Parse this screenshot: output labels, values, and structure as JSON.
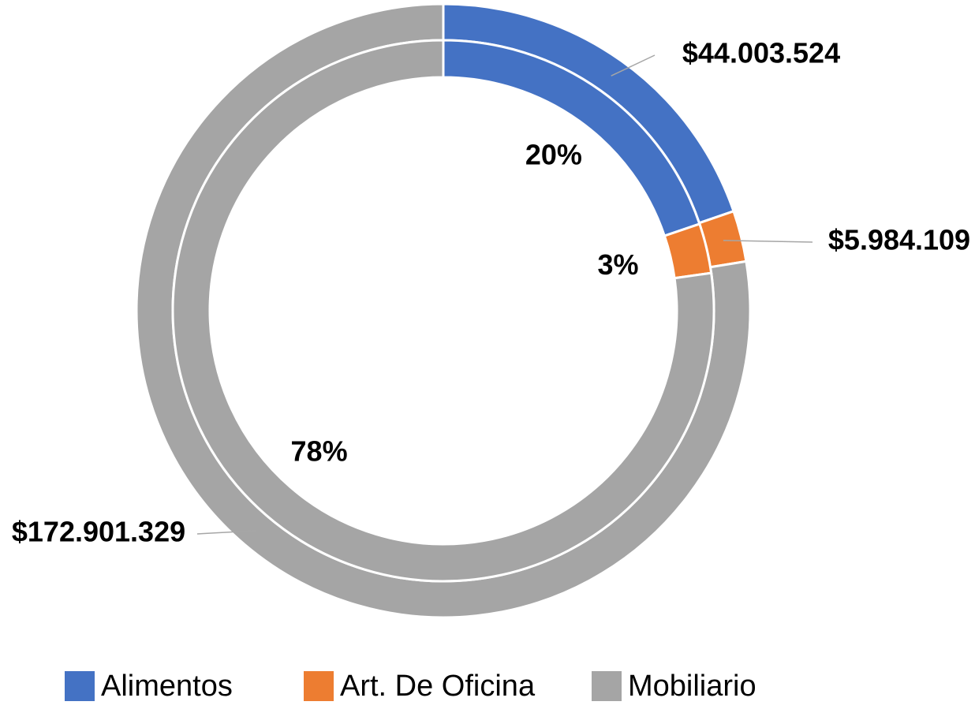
{
  "chart_data": {
    "type": "doughnut",
    "categories": [
      "Alimentos",
      "Art. De Oficina",
      "Mobiliario"
    ],
    "series": [
      {
        "colors": [
          "#4472c4",
          "#ed7d31",
          "#a5a5a5"
        ],
        "values": [
          44003524,
          5984109,
          172901329
        ],
        "value_labels": [
          "$44.003.524",
          "$5.984.109",
          "$172.901.329"
        ]
      },
      {
        "colors": [
          "#4472c4",
          "#ed7d31",
          "#a5a5a5"
        ],
        "values": [
          20,
          3,
          78
        ],
        "value_labels": [
          "20%",
          "3%",
          "78%"
        ]
      }
    ],
    "legend": "bottom"
  }
}
